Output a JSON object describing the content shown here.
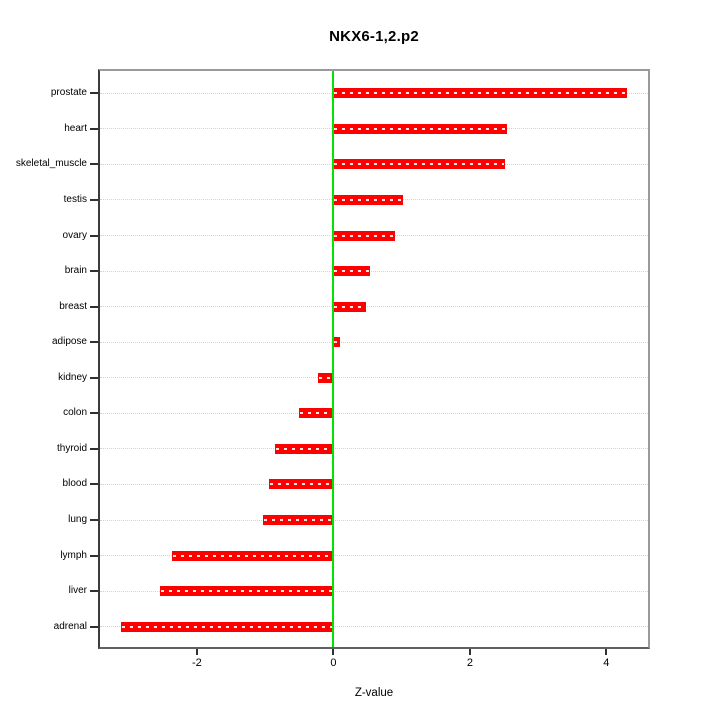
{
  "chart_data": {
    "type": "bar",
    "orientation": "horizontal",
    "title": "NKX6-1,2.p2",
    "xlabel": "Z-value",
    "ylabel": "",
    "categories": [
      "prostate",
      "heart",
      "skeletal_muscle",
      "testis",
      "ovary",
      "brain",
      "breast",
      "adipose",
      "kidney",
      "colon",
      "thyroid",
      "blood",
      "lung",
      "lymph",
      "liver",
      "adrenal"
    ],
    "values": [
      4.3,
      2.55,
      2.52,
      1.02,
      0.9,
      0.54,
      0.48,
      0.09,
      -0.22,
      -0.51,
      -0.85,
      -0.94,
      -1.03,
      -2.36,
      -2.54,
      -3.11
    ],
    "xlim": [
      -3.42,
      4.61
    ],
    "xticks": [
      -2,
      0,
      2,
      4
    ],
    "grid": true,
    "gridline_style": "dotted",
    "legend": "none",
    "colors": {
      "bar": "#FF0000",
      "bar_dash": "#FFFFFF",
      "zero_line": "#00E400",
      "gridline": "#D2D2D2",
      "box_border": "#9A9A9A",
      "axis_tick": "#303030",
      "text": "#000000",
      "background": "#FFFFFF"
    }
  }
}
